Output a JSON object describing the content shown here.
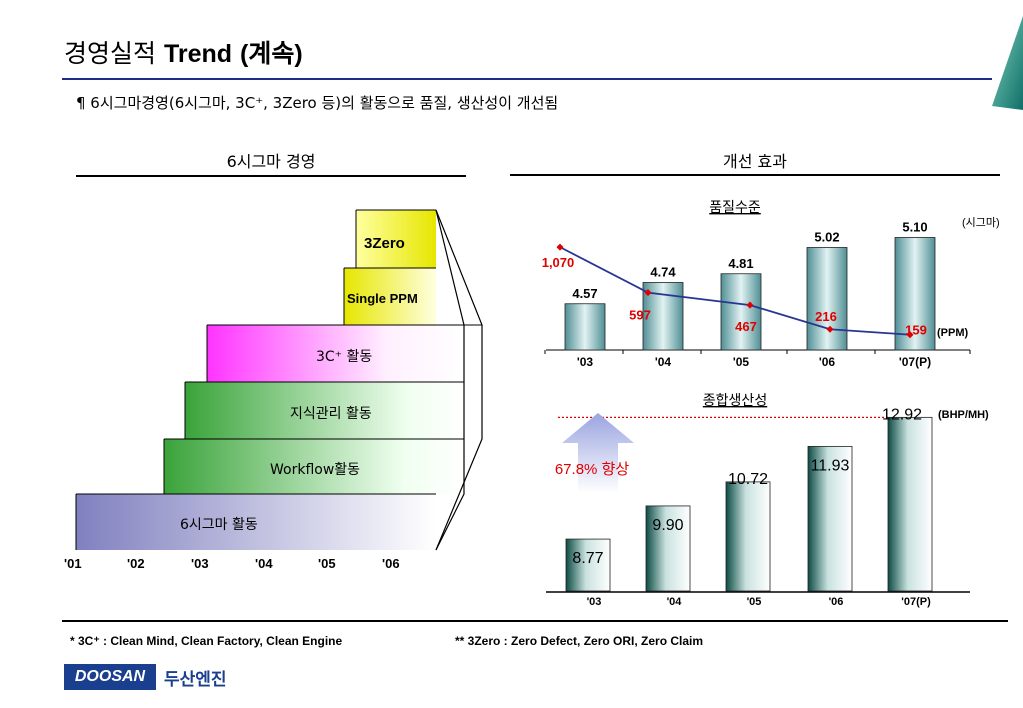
{
  "header": {
    "title_kr": "경영실적",
    "title_en": "Trend",
    "title_suffix": "(계속)",
    "subtitle": "¶ 6시그마경영(6시그마, 3C⁺, 3Zero 등)의 활동으로 품질, 생산성이 개선됨"
  },
  "left_section": {
    "heading": "6시그마 경영",
    "steps": [
      {
        "label": "3Zero",
        "start_year": "'06",
        "color_from": "#ffffa0",
        "color_to": "#e6e600"
      },
      {
        "label": "Single PPM",
        "start_year": "'06",
        "color_from": "#e6e600",
        "color_to": "#ffffe0"
      },
      {
        "label": "3C⁺ 활동",
        "start_year": "'03",
        "color_from": "#ff33ff",
        "color_to": "#ffffff"
      },
      {
        "label": "지식관리 활동",
        "start_year": "'03",
        "color_from": "#3aa33a",
        "color_to": "#ffffff"
      },
      {
        "label": "Workflow활동",
        "start_year": "'02",
        "color_from": "#3aa33a",
        "color_to": "#ffffff"
      },
      {
        "label": "6시그마 활동",
        "start_year": "'01",
        "color_from": "#8080c0",
        "color_to": "#ffffff"
      }
    ],
    "years": [
      "'01",
      "'02",
      "'03",
      "'04",
      "'05",
      "'06"
    ]
  },
  "right_section": {
    "heading": "개선 효과"
  },
  "chart_data": [
    {
      "type": "bar",
      "title": "품질수준",
      "categories": [
        "'03",
        "'04",
        "'05",
        "'06",
        "'07(P)"
      ],
      "series": [
        {
          "name": "(시그마)",
          "values": [
            4.57,
            4.74,
            4.81,
            5.02,
            5.1
          ],
          "labels": [
            "4.57",
            "4.74",
            "4.81",
            "5.02",
            "5.10"
          ],
          "color": "#3d8a8a"
        },
        {
          "name": "(PPM)",
          "type": "line",
          "values": [
            1070,
            597,
            467,
            216,
            159
          ],
          "labels": [
            "1,070",
            "597",
            "467",
            "216",
            "159"
          ],
          "color": "#283593",
          "label_color": "#e00000"
        }
      ],
      "ylim": [
        4.2,
        5.2
      ],
      "y2lim": [
        0,
        1300
      ]
    },
    {
      "type": "bar",
      "title": "종합생산성",
      "categories": [
        "'03",
        "'04",
        "'05",
        "'06",
        "'07(P)"
      ],
      "series": [
        {
          "name": "(BHP/MH)",
          "values": [
            8.77,
            9.9,
            10.72,
            11.93,
            12.92
          ],
          "labels": [
            "8.77",
            "9.90",
            "10.72",
            "11.93",
            "12.92"
          ],
          "color": "#1f5f5a"
        }
      ],
      "ylim": [
        7.0,
        13.0
      ],
      "annotation": "67.8% 향상",
      "annotation_color": "#e00000"
    }
  ],
  "footnotes": {
    "note1": "*  3C⁺    : Clean Mind, Clean Factory, Clean Engine",
    "note2": "** 3Zero : Zero Defect, Zero ORI, Zero Claim"
  },
  "logo": {
    "brand": "DOOSAN",
    "company_kr": "두산엔진"
  }
}
